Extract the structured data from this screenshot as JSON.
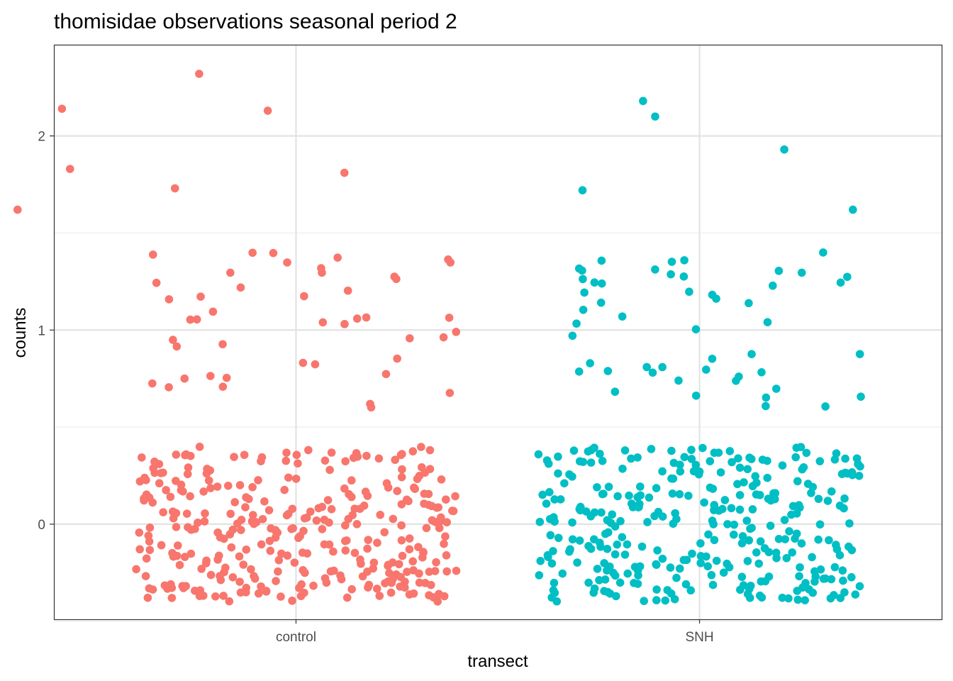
{
  "chart_data": {
    "type": "scatter",
    "title": "thomisidae observations seasonal period 2",
    "xlabel": "transect",
    "ylabel": "counts",
    "categories": [
      "control",
      "SNH"
    ],
    "y_ticks": [
      0,
      1,
      2
    ],
    "y_tick_labels": [
      "0",
      "1",
      "2"
    ],
    "ylim": [
      -0.49,
      2.47
    ],
    "jitter": {
      "width": 0.4,
      "height": 0.4
    },
    "grid": true,
    "legend": "none",
    "series": [
      {
        "category": "control",
        "color": "#F8766D",
        "counts": {
          "0": 330,
          "1": 45,
          "2": 7
        },
        "high_points": [
          {
            "dx": -0.24,
            "y": 2.32
          },
          {
            "dx": -0.58,
            "y": 2.14
          },
          {
            "dx": -0.07,
            "y": 2.13
          },
          {
            "dx": -0.56,
            "y": 1.83
          },
          {
            "dx": 0.12,
            "y": 1.81
          },
          {
            "dx": -0.3,
            "y": 1.73
          },
          {
            "dx": -0.69,
            "y": 1.62
          }
        ]
      },
      {
        "category": "SNH",
        "color": "#00BFC4",
        "counts": {
          "0": 325,
          "1": 50,
          "2": 5
        },
        "high_points": [
          {
            "dx": -0.14,
            "y": 2.18
          },
          {
            "dx": -0.11,
            "y": 2.1
          },
          {
            "dx": 0.21,
            "y": 1.93
          },
          {
            "dx": -0.29,
            "y": 1.72
          },
          {
            "dx": 0.38,
            "y": 1.62
          }
        ]
      }
    ]
  }
}
